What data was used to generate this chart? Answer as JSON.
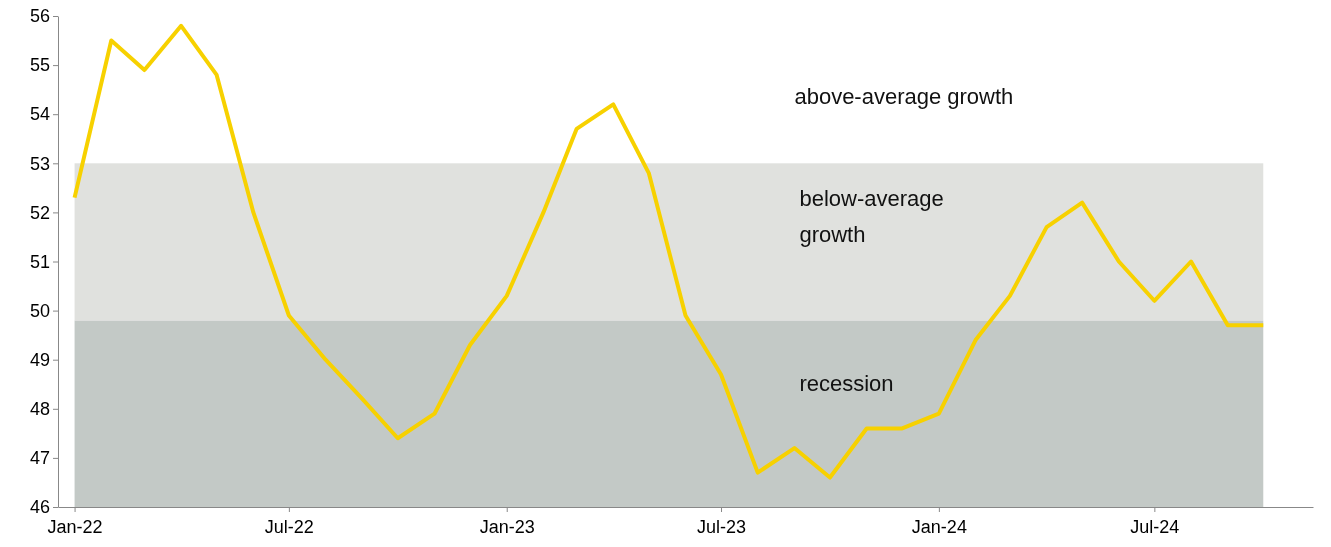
{
  "chart_data": {
    "type": "line",
    "x": [
      "2022-01",
      "2022-02",
      "2022-03",
      "2022-04",
      "2022-05",
      "2022-06",
      "2022-07",
      "2022-08",
      "2022-09",
      "2022-10",
      "2022-11",
      "2022-12",
      "2023-01",
      "2023-02",
      "2023-03",
      "2023-04",
      "2023-05",
      "2023-06",
      "2023-07",
      "2023-08",
      "2023-09",
      "2023-10",
      "2023-11",
      "2023-12",
      "2024-01",
      "2024-02",
      "2024-03",
      "2024-04",
      "2024-05",
      "2024-06",
      "2024-07",
      "2024-08",
      "2024-09",
      "2024-10"
    ],
    "series": [
      {
        "color": "#f7d100",
        "values": [
          52.3,
          55.5,
          54.9,
          55.8,
          54.8,
          52.0,
          49.9,
          49.0,
          48.2,
          47.4,
          47.9,
          49.3,
          50.3,
          52.0,
          53.7,
          54.2,
          52.8,
          49.9,
          48.7,
          46.7,
          47.2,
          46.6,
          47.6,
          47.6,
          47.9,
          49.4,
          50.3,
          51.7,
          52.2,
          51.0,
          50.2,
          51.0,
          49.7,
          49.7
        ]
      }
    ],
    "xlim": [
      "2021-12-18",
      "2024-11-12"
    ],
    "xticks": [
      {
        "value": "2022-01",
        "label": "Jan-22"
      },
      {
        "value": "2022-07",
        "label": "Jul-22"
      },
      {
        "value": "2023-01",
        "label": "Jan-23"
      },
      {
        "value": "2023-07",
        "label": "Jul-23"
      },
      {
        "value": "2024-01",
        "label": "Jan-24"
      },
      {
        "value": "2024-07",
        "label": "Jul-24"
      }
    ],
    "ylim": [
      46,
      56
    ],
    "yticks": [
      46,
      47,
      48,
      49,
      50,
      51,
      52,
      53,
      54,
      55,
      56
    ],
    "grid": false,
    "line_style": "solid",
    "marker": "none",
    "bands": [
      {
        "axis": "y",
        "from": 46,
        "to": 49.8,
        "label": "recession",
        "color": "#c3c9c6"
      },
      {
        "axis": "y",
        "from": 49.8,
        "to": 53,
        "label": "below-average growth",
        "color": "#e0e1de"
      }
    ],
    "annotations": [
      "above-average growth"
    ]
  }
}
